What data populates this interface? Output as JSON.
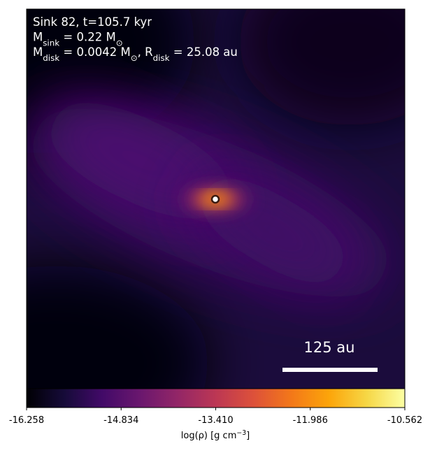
{
  "chart_data": {
    "type": "density-map",
    "annotation_lines": [
      [
        {
          "text": "Sink 82, t=105.7 kyr"
        }
      ],
      [
        {
          "text": "M"
        },
        {
          "text": "sink",
          "sub": true
        },
        {
          "text": " = 0.22 M"
        },
        {
          "text": "⊙",
          "sub": true
        }
      ],
      [
        {
          "text": "M"
        },
        {
          "text": "disk",
          "sub": true
        },
        {
          "text": " = 0.0042 M"
        },
        {
          "text": "⊙",
          "sub": true
        },
        {
          "text": ", R"
        },
        {
          "text": "disk",
          "sub": true
        },
        {
          "text": " = 25.08 au"
        }
      ]
    ],
    "scale_bar_label": "125 au",
    "colorbar": {
      "label": [
        {
          "text": "log(ρ) [g cm"
        },
        {
          "text": "−3",
          "sup": true
        },
        {
          "text": "]"
        }
      ],
      "lim": [
        -16.258,
        -10.562
      ],
      "ticks": [
        -16.258,
        -14.834,
        {
          "value": -13.41,
          "label": "-13.410"
        },
        -11.986,
        -10.562
      ]
    }
  }
}
